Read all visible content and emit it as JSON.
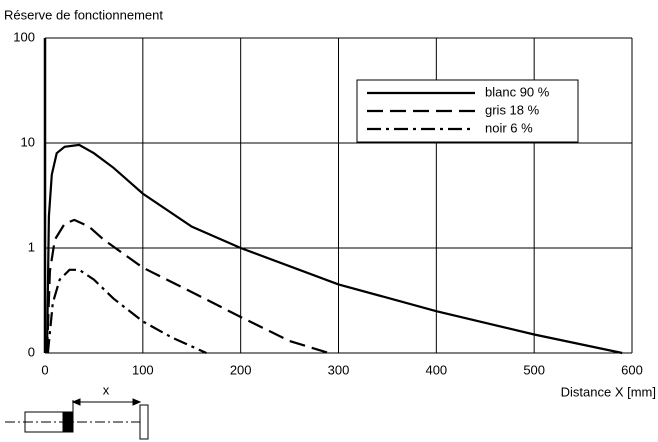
{
  "chart_data": {
    "type": "line",
    "title": "Réserve de fonctionnement",
    "x_label": "Distance X [mm]",
    "diagram_label": "x",
    "xlim": [
      0,
      600
    ],
    "xticks": [
      0,
      100,
      200,
      300,
      400,
      500,
      600
    ],
    "ylim": [
      0.1,
      100
    ],
    "y_scale": "log",
    "yticks": [
      {
        "value": 0.1,
        "label": "0"
      },
      1,
      10,
      100
    ],
    "grid": true,
    "legend": "upper right",
    "series": [
      {
        "name": "blanc 90 %",
        "color": "#000000",
        "style": "solid",
        "x": [
          2,
          4,
          7,
          12,
          20,
          35,
          50,
          70,
          100,
          150,
          200,
          300,
          400,
          500,
          590
        ],
        "values": [
          0.1,
          2,
          5,
          8,
          9.2,
          9.6,
          8,
          5.8,
          3.3,
          1.6,
          1.0,
          0.45,
          0.25,
          0.15,
          0.1
        ]
      },
      {
        "name": "gris 18 %",
        "color": "#000000",
        "style": "dashed",
        "x": [
          2,
          5,
          10,
          20,
          30,
          45,
          60,
          100,
          150,
          200,
          250,
          290
        ],
        "values": [
          0.1,
          0.6,
          1.2,
          1.7,
          1.85,
          1.6,
          1.2,
          0.65,
          0.38,
          0.22,
          0.13,
          0.1
        ]
      },
      {
        "name": "noir 6 %",
        "color": "#000000",
        "style": "dashdot",
        "x": [
          3,
          8,
          15,
          25,
          35,
          50,
          70,
          100,
          130,
          165
        ],
        "values": [
          0.1,
          0.3,
          0.5,
          0.62,
          0.62,
          0.5,
          0.33,
          0.2,
          0.14,
          0.1
        ]
      }
    ]
  }
}
